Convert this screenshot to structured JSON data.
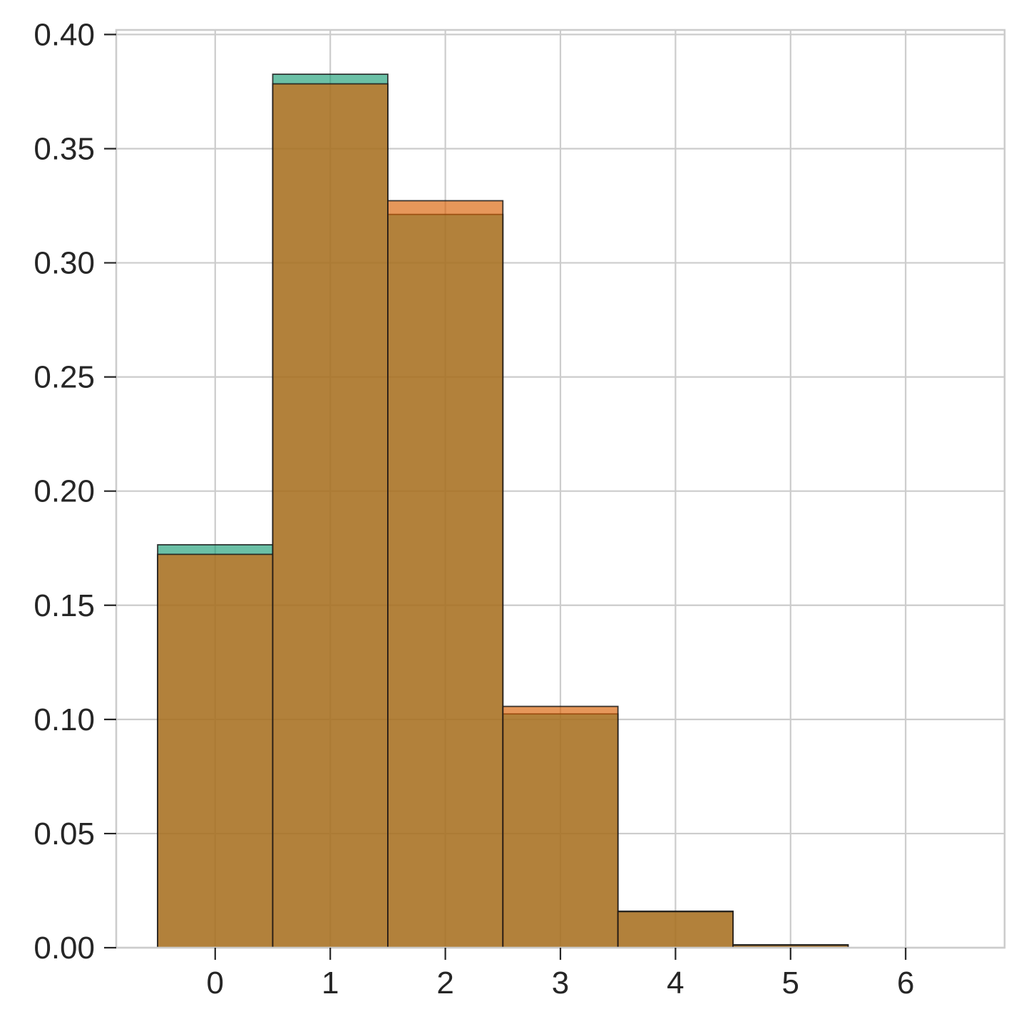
{
  "chart_data": {
    "type": "bar",
    "title": "",
    "xlabel": "",
    "ylabel": "",
    "histogram": true,
    "bin_width": 1,
    "categories": [
      "0",
      "1",
      "2",
      "3",
      "4",
      "5"
    ],
    "x": [
      0,
      1,
      2,
      3,
      4,
      5
    ],
    "xlim": [
      -0.86,
      6.86
    ],
    "ylim": [
      0,
      0.402
    ],
    "xticks": [
      0,
      1,
      2,
      3,
      4,
      5,
      6
    ],
    "xtick_labels": [
      "0",
      "1",
      "2",
      "3",
      "4",
      "5",
      "6"
    ],
    "yticks": [
      0,
      0.05,
      0.1,
      0.15,
      0.2,
      0.25,
      0.3,
      0.35,
      0.4
    ],
    "ytick_labels": [
      "0.00",
      "0.05",
      "0.10",
      "0.15",
      "0.20",
      "0.25",
      "0.30",
      "0.35",
      "0.40"
    ],
    "grid": true,
    "legend": "none",
    "series": [
      {
        "values": [
          0.1765,
          0.3826,
          0.3212,
          0.1024,
          0.016,
          0.0013
        ],
        "color": "#1b9e77",
        "opacity": 0.65
      },
      {
        "values": [
          0.1723,
          0.3784,
          0.3272,
          0.1057,
          0.0158,
          0.0011
        ],
        "color": "#d95f02",
        "opacity": 0.65
      }
    ]
  }
}
